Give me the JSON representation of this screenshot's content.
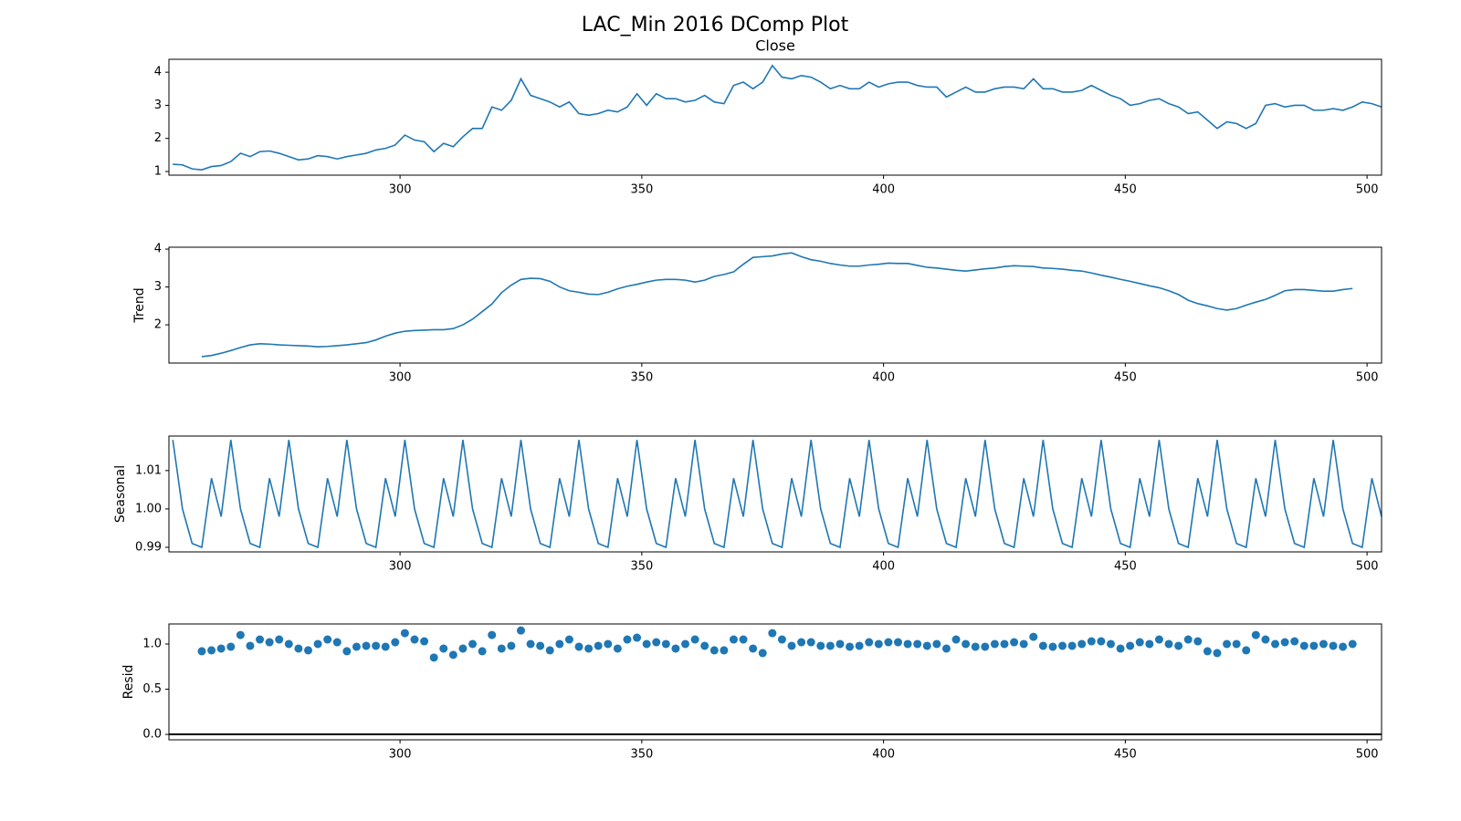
{
  "title": "LAC_Min 2016 DComp Plot",
  "chart_data": [
    {
      "type": "line",
      "title": "Close",
      "color": "#1f77b4",
      "x": [
        253,
        255,
        257,
        259,
        261,
        263,
        265,
        267,
        269,
        271,
        273,
        275,
        277,
        279,
        281,
        283,
        285,
        287,
        289,
        291,
        293,
        295,
        297,
        299,
        301,
        303,
        305,
        307,
        309,
        311,
        313,
        315,
        317,
        319,
        321,
        323,
        325,
        327,
        329,
        331,
        333,
        335,
        337,
        339,
        341,
        343,
        345,
        347,
        349,
        351,
        353,
        355,
        357,
        359,
        361,
        363,
        365,
        367,
        369,
        371,
        373,
        375,
        377,
        379,
        381,
        383,
        385,
        387,
        389,
        391,
        393,
        395,
        397,
        399,
        401,
        403,
        405,
        407,
        409,
        411,
        413,
        415,
        417,
        419,
        421,
        423,
        425,
        427,
        429,
        431,
        433,
        435,
        437,
        439,
        441,
        443,
        445,
        447,
        449,
        451,
        453,
        455,
        457,
        459,
        461,
        463,
        465,
        467,
        469,
        471,
        473,
        475,
        477,
        479,
        481,
        483,
        485,
        487,
        489,
        491,
        493,
        495,
        497,
        499,
        501,
        503
      ],
      "values": [
        1.22,
        1.2,
        1.08,
        1.05,
        1.15,
        1.18,
        1.3,
        1.55,
        1.45,
        1.6,
        1.62,
        1.55,
        1.45,
        1.35,
        1.38,
        1.48,
        1.45,
        1.38,
        1.45,
        1.5,
        1.55,
        1.65,
        1.7,
        1.8,
        2.1,
        1.95,
        1.9,
        1.6,
        1.85,
        1.75,
        2.05,
        2.3,
        2.3,
        2.95,
        2.85,
        3.15,
        3.8,
        3.3,
        3.2,
        3.1,
        2.95,
        3.1,
        2.75,
        2.7,
        2.75,
        2.85,
        2.8,
        2.95,
        3.35,
        3.0,
        3.35,
        3.2,
        3.2,
        3.1,
        3.15,
        3.3,
        3.1,
        3.05,
        3.6,
        3.7,
        3.5,
        3.7,
        4.2,
        3.85,
        3.8,
        3.9,
        3.85,
        3.7,
        3.5,
        3.6,
        3.5,
        3.5,
        3.7,
        3.55,
        3.65,
        3.7,
        3.7,
        3.6,
        3.55,
        3.55,
        3.25,
        3.4,
        3.55,
        3.4,
        3.4,
        3.5,
        3.55,
        3.55,
        3.5,
        3.8,
        3.5,
        3.5,
        3.4,
        3.4,
        3.45,
        3.6,
        3.45,
        3.3,
        3.2,
        3.0,
        3.05,
        3.15,
        3.2,
        3.05,
        2.95,
        2.75,
        2.8,
        2.55,
        2.3,
        2.5,
        2.45,
        2.3,
        2.45,
        3.0,
        3.05,
        2.95,
        3.0,
        3.0,
        2.85,
        2.85,
        2.9,
        2.85,
        2.95,
        3.1,
        3.05,
        2.95
      ],
      "xlim": [
        252.2,
        503
      ],
      "xticks": [
        300,
        350,
        400,
        450,
        500
      ],
      "ylim": [
        0.89,
        4.39
      ],
      "yticks": [
        1,
        2,
        3,
        4
      ]
    },
    {
      "type": "line",
      "ylabel": "Trend",
      "color": "#1f77b4",
      "x": [
        253,
        255,
        257,
        259,
        261,
        263,
        265,
        267,
        269,
        271,
        273,
        275,
        277,
        279,
        281,
        283,
        285,
        287,
        289,
        291,
        293,
        295,
        297,
        299,
        301,
        303,
        305,
        307,
        309,
        311,
        313,
        315,
        317,
        319,
        321,
        323,
        325,
        327,
        329,
        331,
        333,
        335,
        337,
        339,
        341,
        343,
        345,
        347,
        349,
        351,
        353,
        355,
        357,
        359,
        361,
        363,
        365,
        367,
        369,
        371,
        373,
        375,
        377,
        379,
        381,
        383,
        385,
        387,
        389,
        391,
        393,
        395,
        397,
        399,
        401,
        403,
        405,
        407,
        409,
        411,
        413,
        415,
        417,
        419,
        421,
        423,
        425,
        427,
        429,
        431,
        433,
        435,
        437,
        439,
        441,
        443,
        445,
        447,
        449,
        451,
        453,
        455,
        457,
        459,
        461,
        463,
        465,
        467,
        469,
        471,
        473,
        475,
        477,
        479,
        481,
        483,
        485,
        487,
        489,
        491,
        493,
        495,
        497,
        499,
        501,
        503
      ],
      "values": [
        null,
        null,
        null,
        1.16,
        1.19,
        1.25,
        1.32,
        1.4,
        1.47,
        1.5,
        1.49,
        1.47,
        1.46,
        1.45,
        1.44,
        1.42,
        1.43,
        1.45,
        1.47,
        1.5,
        1.53,
        1.6,
        1.7,
        1.78,
        1.83,
        1.85,
        1.86,
        1.87,
        1.87,
        1.9,
        2.0,
        2.15,
        2.35,
        2.55,
        2.85,
        3.05,
        3.2,
        3.23,
        3.22,
        3.15,
        3.0,
        2.9,
        2.86,
        2.81,
        2.8,
        2.86,
        2.95,
        3.02,
        3.07,
        3.13,
        3.18,
        3.2,
        3.2,
        3.18,
        3.13,
        3.18,
        3.28,
        3.33,
        3.4,
        3.6,
        3.78,
        3.8,
        3.82,
        3.87,
        3.9,
        3.8,
        3.72,
        3.68,
        3.62,
        3.58,
        3.55,
        3.55,
        3.58,
        3.6,
        3.63,
        3.62,
        3.62,
        3.57,
        3.52,
        3.5,
        3.47,
        3.44,
        3.42,
        3.45,
        3.48,
        3.5,
        3.54,
        3.56,
        3.55,
        3.54,
        3.5,
        3.49,
        3.47,
        3.44,
        3.42,
        3.37,
        3.31,
        3.26,
        3.2,
        3.15,
        3.09,
        3.03,
        2.98,
        2.9,
        2.8,
        2.65,
        2.56,
        2.5,
        2.43,
        2.39,
        2.43,
        2.52,
        2.6,
        2.67,
        2.78,
        2.9,
        2.93,
        2.93,
        2.91,
        2.89,
        2.89,
        2.93,
        2.96,
        null,
        null,
        null
      ],
      "xlim": [
        252.2,
        503
      ],
      "xticks": [
        300,
        350,
        400,
        450,
        500
      ],
      "ylim": [
        0.99,
        4.05
      ],
      "yticks": [
        2,
        3,
        4
      ]
    },
    {
      "type": "line",
      "ylabel": "Seasonal",
      "color": "#1f77b4",
      "x": [
        253,
        255,
        257,
        259,
        261,
        263,
        265,
        267,
        269,
        271,
        273,
        275,
        277,
        279,
        281,
        283,
        285,
        287,
        289,
        291,
        293,
        295,
        297,
        299,
        301,
        303,
        305,
        307,
        309,
        311,
        313,
        315,
        317,
        319,
        321,
        323,
        325,
        327,
        329,
        331,
        333,
        335,
        337,
        339,
        341,
        343,
        345,
        347,
        349,
        351,
        353,
        355,
        357,
        359,
        361,
        363,
        365,
        367,
        369,
        371,
        373,
        375,
        377,
        379,
        381,
        383,
        385,
        387,
        389,
        391,
        393,
        395,
        397,
        399,
        401,
        403,
        405,
        407,
        409,
        411,
        413,
        415,
        417,
        419,
        421,
        423,
        425,
        427,
        429,
        431,
        433,
        435,
        437,
        439,
        441,
        443,
        445,
        447,
        449,
        451,
        453,
        455,
        457,
        459,
        461,
        463,
        465,
        467,
        469,
        471,
        473,
        475,
        477,
        479,
        481,
        483,
        485,
        487,
        489,
        491,
        493,
        495,
        497,
        499,
        501,
        503
      ],
      "values": [
        1.018,
        1.0,
        0.991,
        0.99,
        1.008,
        0.998,
        1.018,
        1.0,
        0.991,
        0.99,
        1.008,
        0.998,
        1.018,
        1.0,
        0.991,
        0.99,
        1.008,
        0.998,
        1.018,
        1.0,
        0.991,
        0.99,
        1.008,
        0.998,
        1.018,
        1.0,
        0.991,
        0.99,
        1.008,
        0.998,
        1.018,
        1.0,
        0.991,
        0.99,
        1.008,
        0.998,
        1.018,
        1.0,
        0.991,
        0.99,
        1.008,
        0.998,
        1.018,
        1.0,
        0.991,
        0.99,
        1.008,
        0.998,
        1.018,
        1.0,
        0.991,
        0.99,
        1.008,
        0.998,
        1.018,
        1.0,
        0.991,
        0.99,
        1.008,
        0.998,
        1.018,
        1.0,
        0.991,
        0.99,
        1.008,
        0.998,
        1.018,
        1.0,
        0.991,
        0.99,
        1.008,
        0.998,
        1.018,
        1.0,
        0.991,
        0.99,
        1.008,
        0.998,
        1.018,
        1.0,
        0.991,
        0.99,
        1.008,
        0.998,
        1.018,
        1.0,
        0.991,
        0.99,
        1.008,
        0.998,
        1.018,
        1.0,
        0.991,
        0.99,
        1.008,
        0.998,
        1.018,
        1.0,
        0.991,
        0.99,
        1.008,
        0.998,
        1.018,
        1.0,
        0.991,
        0.99,
        1.008,
        0.998,
        1.018,
        1.0,
        0.991,
        0.99,
        1.008,
        0.998,
        1.018,
        1.0,
        0.991,
        0.99,
        1.008,
        0.998,
        1.018,
        1.0,
        0.991,
        0.99,
        1.008,
        0.998
      ],
      "xlim": [
        252.2,
        503
      ],
      "xticks": [
        300,
        350,
        400,
        450,
        500
      ],
      "ylim": [
        0.9888,
        1.019
      ],
      "yticks": [
        0.99,
        {
          "value": 1.0,
          "label": "1.00"
        },
        1.01
      ]
    },
    {
      "type": "scatter",
      "ylabel": "Resid",
      "color": "#1f77b4",
      "hline": 0,
      "x": [
        253,
        255,
        257,
        259,
        261,
        263,
        265,
        267,
        269,
        271,
        273,
        275,
        277,
        279,
        281,
        283,
        285,
        287,
        289,
        291,
        293,
        295,
        297,
        299,
        301,
        303,
        305,
        307,
        309,
        311,
        313,
        315,
        317,
        319,
        321,
        323,
        325,
        327,
        329,
        331,
        333,
        335,
        337,
        339,
        341,
        343,
        345,
        347,
        349,
        351,
        353,
        355,
        357,
        359,
        361,
        363,
        365,
        367,
        369,
        371,
        373,
        375,
        377,
        379,
        381,
        383,
        385,
        387,
        389,
        391,
        393,
        395,
        397,
        399,
        401,
        403,
        405,
        407,
        409,
        411,
        413,
        415,
        417,
        419,
        421,
        423,
        425,
        427,
        429,
        431,
        433,
        435,
        437,
        439,
        441,
        443,
        445,
        447,
        449,
        451,
        453,
        455,
        457,
        459,
        461,
        463,
        465,
        467,
        469,
        471,
        473,
        475,
        477,
        479,
        481,
        483,
        485,
        487,
        489,
        491,
        493,
        495,
        497,
        499,
        501,
        503
      ],
      "values": [
        null,
        null,
        null,
        0.92,
        0.93,
        0.95,
        0.97,
        1.1,
        0.98,
        1.05,
        1.02,
        1.05,
        1.0,
        0.95,
        0.93,
        1.0,
        1.05,
        1.02,
        0.92,
        0.97,
        0.98,
        0.98,
        0.97,
        1.02,
        1.12,
        1.05,
        1.03,
        0.85,
        0.95,
        0.88,
        0.95,
        1.0,
        0.92,
        1.1,
        0.95,
        0.98,
        1.15,
        1.0,
        0.98,
        0.93,
        1.0,
        1.05,
        0.97,
        0.95,
        0.98,
        1.0,
        0.95,
        1.05,
        1.07,
        1.0,
        1.02,
        1.0,
        0.95,
        1.0,
        1.05,
        0.98,
        0.93,
        0.93,
        1.05,
        1.05,
        0.95,
        0.9,
        1.12,
        1.05,
        0.98,
        1.02,
        1.02,
        0.98,
        0.98,
        1.0,
        0.97,
        0.98,
        1.02,
        1.0,
        1.02,
        1.02,
        1.0,
        1.0,
        0.98,
        1.0,
        0.95,
        1.05,
        1.0,
        0.97,
        0.97,
        1.0,
        1.0,
        1.02,
        1.0,
        1.08,
        0.98,
        0.97,
        0.98,
        0.98,
        1.0,
        1.03,
        1.03,
        1.0,
        0.95,
        0.98,
        1.02,
        1.0,
        1.05,
        1.0,
        0.98,
        1.05,
        1.03,
        0.92,
        0.9,
        1.0,
        1.0,
        0.93,
        1.1,
        1.05,
        1.0,
        1.02,
        1.03,
        0.98,
        0.98,
        1.0,
        0.98,
        0.97,
        1.0,
        null,
        null,
        null
      ],
      "xlim": [
        252.2,
        503
      ],
      "xticks": [
        300,
        350,
        400,
        450,
        500
      ],
      "ylim": [
        -0.06,
        1.222
      ],
      "yticks": [
        {
          "value": 0,
          "label": "0.0"
        },
        0.5,
        {
          "value": 1,
          "label": "1.0"
        }
      ]
    }
  ]
}
